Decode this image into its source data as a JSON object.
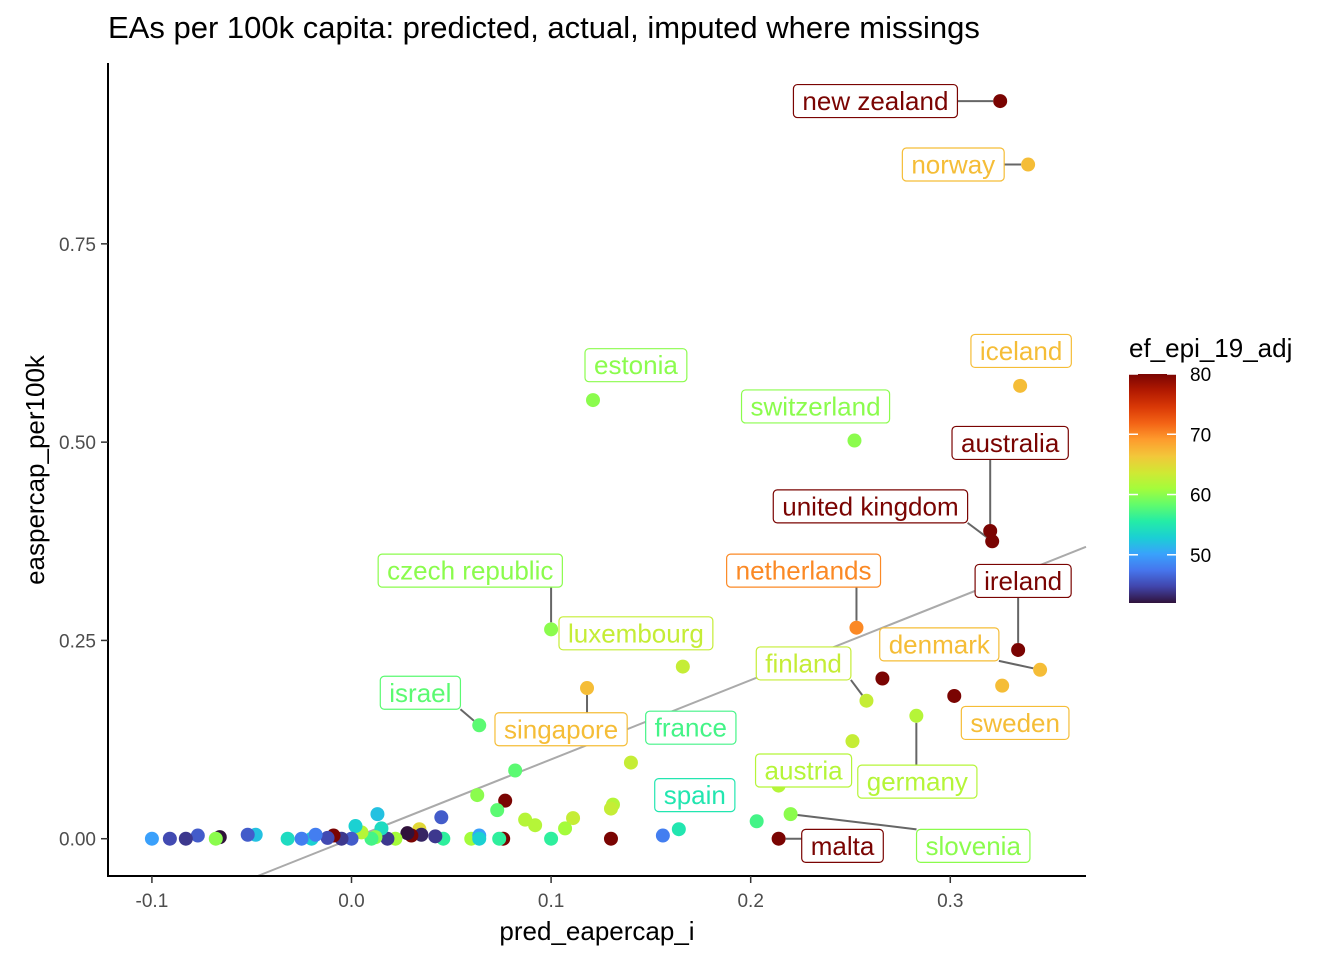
{
  "chart_data": {
    "type": "scatter",
    "title": "EAs per 100k capita: predicted, actual, imputed where missings",
    "xlabel": "pred_eapercap_i",
    "ylabel": "easpercap_per100k",
    "xlim": [
      -0.122,
      0.368
    ],
    "ylim": [
      -0.047,
      0.978
    ],
    "xticks": [
      -0.1,
      0.0,
      0.1,
      0.2,
      0.3
    ],
    "xtick_labels": [
      "-0.1",
      "0.0",
      "0.1",
      "0.2",
      "0.3"
    ],
    "yticks": [
      0.0,
      0.25,
      0.5,
      0.75
    ],
    "ytick_labels": [
      "0.00",
      "0.25",
      "0.50",
      "0.75"
    ],
    "grid": false,
    "reference_line": {
      "slope": 1,
      "intercept": 0,
      "color": "#aaaaaa"
    },
    "legend": {
      "title": "ef_epi_19_adj",
      "type": "colorbar",
      "placement": "right",
      "range": [
        42,
        80
      ],
      "ticks": [
        50,
        60,
        70,
        80
      ],
      "tick_labels": [
        "50",
        "60",
        "70",
        "80"
      ],
      "palette": [
        "#30123b",
        "#4145ab",
        "#4675ed",
        "#39a2fc",
        "#1bcfd4",
        "#24eca6",
        "#61fc6c",
        "#a4fc3b",
        "#d1e834",
        "#f3c63a",
        "#fe9b2d",
        "#f36315",
        "#d93806",
        "#b11901",
        "#7a0402"
      ]
    },
    "points": [
      {
        "x": 0.325,
        "y": 0.93,
        "c": 80,
        "label": "new zealand",
        "lx": 0.2625,
        "ly": 0.93
      },
      {
        "x": 0.339,
        "y": 0.85,
        "c": 67,
        "label": "norway",
        "lx": 0.3015,
        "ly": 0.85
      },
      {
        "x": 0.121,
        "y": 0.553,
        "c": 60,
        "label": "estonia",
        "lx": 0.1425,
        "ly": 0.597
      },
      {
        "x": 0.252,
        "y": 0.502,
        "c": 60,
        "label": "switzerland",
        "lx": 0.2325,
        "ly": 0.545
      },
      {
        "x": 0.335,
        "y": 0.571,
        "c": 67,
        "label": "iceland",
        "lx": 0.3355,
        "ly": 0.615
      },
      {
        "x": 0.32,
        "y": 0.388,
        "c": 80,
        "label": "australia",
        "lx": 0.33,
        "ly": 0.499
      },
      {
        "x": 0.321,
        "y": 0.375,
        "c": 80,
        "label": "united kingdom",
        "lx": 0.26,
        "ly": 0.419
      },
      {
        "x": 0.1,
        "y": 0.264,
        "c": 60,
        "label": "czech republic",
        "lx": 0.0595,
        "ly": 0.338
      },
      {
        "x": 0.253,
        "y": 0.266,
        "c": 70,
        "label": "netherlands",
        "lx": 0.2265,
        "ly": 0.338
      },
      {
        "x": 0.334,
        "y": 0.238,
        "c": 80,
        "label": "ireland",
        "lx": 0.3365,
        "ly": 0.325
      },
      {
        "x": 0.345,
        "y": 0.213,
        "c": 67,
        "label": "denmark",
        "lx": 0.2945,
        "ly": 0.245
      },
      {
        "x": 0.258,
        "y": 0.174,
        "c": 63,
        "label": "finland",
        "lx": 0.2265,
        "ly": 0.221
      },
      {
        "x": 0.326,
        "y": 0.193,
        "c": 67,
        "label": "sweden",
        "lx": 0.3325,
        "ly": 0.146
      },
      {
        "x": 0.118,
        "y": 0.19,
        "c": 67,
        "label": "singapore",
        "lx": 0.105,
        "ly": 0.138
      },
      {
        "x": 0.064,
        "y": 0.143,
        "c": 58,
        "label": "israel",
        "lx": 0.0345,
        "ly": 0.184
      },
      {
        "x": 0.166,
        "y": 0.217,
        "c": 63,
        "label": "luxembourg",
        "lx": 0.1425,
        "ly": 0.259
      },
      {
        "x": 0.14,
        "y": 0.096,
        "c": 63,
        "label": "",
        "lx": 0,
        "ly": 0
      },
      {
        "x": 0.283,
        "y": 0.155,
        "c": 62,
        "label": "germany",
        "lx": 0.2835,
        "ly": 0.072
      },
      {
        "x": 0.214,
        "y": 0.067,
        "c": 62,
        "label": "austria",
        "lx": 0.2265,
        "ly": 0.086
      },
      {
        "x": 0.22,
        "y": 0.031,
        "c": 60,
        "label": "slovenia",
        "lx": 0.3115,
        "ly": -0.009
      },
      {
        "x": 0.214,
        "y": 0.0,
        "c": 80,
        "label": "malta",
        "lx": 0.246,
        "ly": -0.009
      },
      {
        "x": 0.164,
        "y": 0.012,
        "c": 55,
        "label": "spain",
        "lx": 0.172,
        "ly": 0.055
      },
      {
        "x": 0.163,
        "y": 0.14,
        "c": 57,
        "label": "france",
        "lx": 0.17,
        "ly": 0.14
      },
      {
        "x": 0.266,
        "y": 0.202,
        "c": 80,
        "label": "",
        "lx": 0,
        "ly": 0
      },
      {
        "x": 0.302,
        "y": 0.18,
        "c": 80,
        "label": "",
        "lx": 0,
        "ly": 0
      },
      {
        "x": 0.251,
        "y": 0.123,
        "c": 63,
        "label": "",
        "lx": 0,
        "ly": 0
      },
      {
        "x": 0.082,
        "y": 0.086,
        "c": 58,
        "label": "",
        "lx": 0,
        "ly": 0
      },
      {
        "x": 0.063,
        "y": 0.055,
        "c": 60,
        "label": "",
        "lx": 0,
        "ly": 0
      },
      {
        "x": 0.077,
        "y": 0.048,
        "c": 80,
        "label": "",
        "lx": 0,
        "ly": 0
      },
      {
        "x": 0.073,
        "y": 0.036,
        "c": 58,
        "label": "",
        "lx": 0,
        "ly": 0
      },
      {
        "x": 0.087,
        "y": 0.024,
        "c": 62,
        "label": "",
        "lx": 0,
        "ly": 0
      },
      {
        "x": 0.092,
        "y": 0.017,
        "c": 62,
        "label": "",
        "lx": 0,
        "ly": 0
      },
      {
        "x": 0.111,
        "y": 0.026,
        "c": 63,
        "label": "",
        "lx": 0,
        "ly": 0
      },
      {
        "x": 0.107,
        "y": 0.013,
        "c": 61,
        "label": "",
        "lx": 0,
        "ly": 0
      },
      {
        "x": 0.131,
        "y": 0.043,
        "c": 62,
        "label": "",
        "lx": 0,
        "ly": 0
      },
      {
        "x": 0.13,
        "y": 0.038,
        "c": 63,
        "label": "",
        "lx": 0,
        "ly": 0
      },
      {
        "x": 0.13,
        "y": 0.0,
        "c": 80,
        "label": "",
        "lx": 0,
        "ly": 0
      },
      {
        "x": 0.1,
        "y": 0.0,
        "c": 56,
        "label": "",
        "lx": 0,
        "ly": 0
      },
      {
        "x": 0.156,
        "y": 0.004,
        "c": 48,
        "label": "",
        "lx": 0,
        "ly": 0
      },
      {
        "x": 0.203,
        "y": 0.022,
        "c": 57,
        "label": "",
        "lx": 0,
        "ly": 0
      },
      {
        "x": 0.076,
        "y": 0.0,
        "c": 80,
        "label": "",
        "lx": 0,
        "ly": 0
      },
      {
        "x": 0.074,
        "y": 0.0,
        "c": 56,
        "label": "",
        "lx": 0,
        "ly": 0
      },
      {
        "x": 0.06,
        "y": 0.0,
        "c": 61,
        "label": "",
        "lx": 0,
        "ly": 0
      },
      {
        "x": 0.064,
        "y": 0.004,
        "c": 50,
        "label": "",
        "lx": 0,
        "ly": 0
      },
      {
        "x": 0.064,
        "y": 0.0,
        "c": 53,
        "label": "",
        "lx": 0,
        "ly": 0
      },
      {
        "x": 0.046,
        "y": 0.0,
        "c": 56,
        "label": "",
        "lx": 0,
        "ly": 0
      },
      {
        "x": 0.045,
        "y": 0.027,
        "c": 46,
        "label": "",
        "lx": 0,
        "ly": 0
      },
      {
        "x": 0.042,
        "y": 0.003,
        "c": 44,
        "label": "",
        "lx": 0,
        "ly": 0
      },
      {
        "x": 0.034,
        "y": 0.012,
        "c": 65,
        "label": "",
        "lx": 0,
        "ly": 0
      },
      {
        "x": 0.035,
        "y": 0.005,
        "c": 43,
        "label": "",
        "lx": 0,
        "ly": 0
      },
      {
        "x": 0.03,
        "y": 0.004,
        "c": 80,
        "label": "",
        "lx": 0,
        "ly": 0
      },
      {
        "x": 0.028,
        "y": 0.007,
        "c": 42,
        "label": "",
        "lx": 0,
        "ly": 0
      },
      {
        "x": 0.022,
        "y": 0.0,
        "c": 61,
        "label": "",
        "lx": 0,
        "ly": 0
      },
      {
        "x": 0.018,
        "y": 0.0,
        "c": 44,
        "label": "",
        "lx": 0,
        "ly": 0
      },
      {
        "x": 0.013,
        "y": 0.031,
        "c": 52,
        "label": "",
        "lx": 0,
        "ly": 0
      },
      {
        "x": 0.015,
        "y": 0.013,
        "c": 54,
        "label": "",
        "lx": 0,
        "ly": 0
      },
      {
        "x": 0.012,
        "y": 0.002,
        "c": 60,
        "label": "",
        "lx": 0,
        "ly": 0
      },
      {
        "x": 0.01,
        "y": 0.0,
        "c": 57,
        "label": "",
        "lx": 0,
        "ly": 0
      },
      {
        "x": 0.005,
        "y": 0.008,
        "c": 62,
        "label": "",
        "lx": 0,
        "ly": 0
      },
      {
        "x": 0.002,
        "y": 0.016,
        "c": 53,
        "label": "",
        "lx": 0,
        "ly": 0
      },
      {
        "x": 0.0,
        "y": 0.0,
        "c": 46,
        "label": "",
        "lx": 0,
        "ly": 0
      },
      {
        "x": -0.005,
        "y": 0.0,
        "c": 44,
        "label": "",
        "lx": 0,
        "ly": 0
      },
      {
        "x": -0.009,
        "y": 0.004,
        "c": 80,
        "label": "",
        "lx": 0,
        "ly": 0
      },
      {
        "x": -0.012,
        "y": 0.001,
        "c": 45,
        "label": "",
        "lx": 0,
        "ly": 0
      },
      {
        "x": -0.02,
        "y": 0.0,
        "c": 53,
        "label": "",
        "lx": 0,
        "ly": 0
      },
      {
        "x": -0.018,
        "y": 0.005,
        "c": 48,
        "label": "",
        "lx": 0,
        "ly": 0
      },
      {
        "x": -0.025,
        "y": 0.0,
        "c": 48,
        "label": "",
        "lx": 0,
        "ly": 0
      },
      {
        "x": -0.032,
        "y": 0.0,
        "c": 54,
        "label": "",
        "lx": 0,
        "ly": 0
      },
      {
        "x": -0.048,
        "y": 0.005,
        "c": 52,
        "label": "",
        "lx": 0,
        "ly": 0
      },
      {
        "x": -0.052,
        "y": 0.005,
        "c": 46,
        "label": "",
        "lx": 0,
        "ly": 0
      },
      {
        "x": -0.066,
        "y": 0.002,
        "c": 42,
        "label": "",
        "lx": 0,
        "ly": 0
      },
      {
        "x": -0.068,
        "y": 0.0,
        "c": 60,
        "label": "",
        "lx": 0,
        "ly": 0
      },
      {
        "x": -0.077,
        "y": 0.004,
        "c": 46,
        "label": "",
        "lx": 0,
        "ly": 0
      },
      {
        "x": -0.083,
        "y": 0.0,
        "c": 44,
        "label": "",
        "lx": 0,
        "ly": 0
      },
      {
        "x": -0.091,
        "y": 0.0,
        "c": 45,
        "label": "",
        "lx": 0,
        "ly": 0
      },
      {
        "x": -0.1,
        "y": 0.0,
        "c": 50,
        "label": "",
        "lx": 0,
        "ly": 0
      }
    ]
  }
}
